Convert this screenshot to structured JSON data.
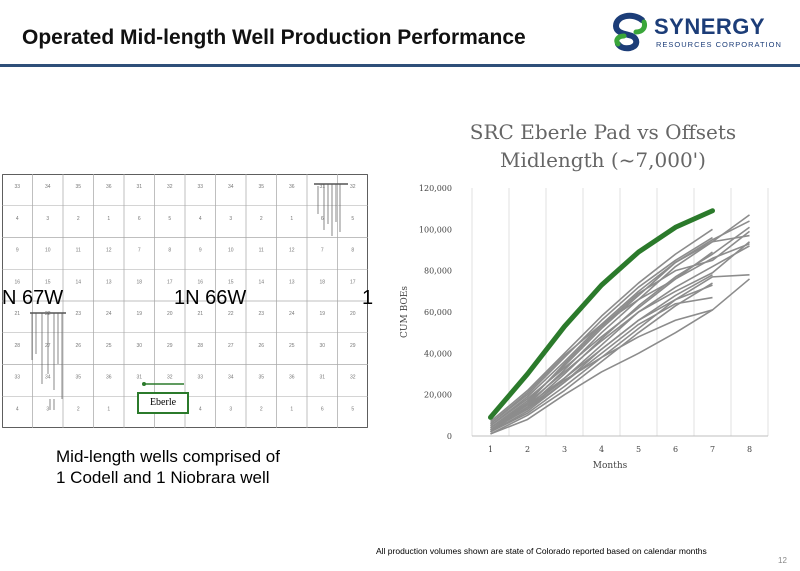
{
  "header": {
    "title": "Operated Mid-length Well Production Performance",
    "logo_name": "SYNERGY",
    "logo_subtitle": "RESOURCES CORPORATION",
    "logo_icon": "synergy-s-logo"
  },
  "map": {
    "township_left": "N 67W",
    "township_center": "1N 66W",
    "township_right": "1",
    "pad_label": "Eberle",
    "section_rows": [
      [
        "33",
        "34",
        "35",
        "36",
        "31",
        "32",
        "33",
        "34",
        "35",
        "36",
        "31",
        "32"
      ],
      [
        "4",
        "3",
        "2",
        "1",
        "6",
        "5",
        "4",
        "3",
        "2",
        "1",
        "6",
        "5"
      ],
      [
        "9",
        "10",
        "11",
        "12",
        "7",
        "8",
        "9",
        "10",
        "11",
        "12",
        "7",
        "8"
      ],
      [
        "16",
        "15",
        "14",
        "13",
        "18",
        "17",
        "16",
        "15",
        "14",
        "13",
        "18",
        "17"
      ],
      [
        "21",
        "22",
        "23",
        "24",
        "19",
        "20",
        "21",
        "22",
        "23",
        "24",
        "19",
        "20"
      ],
      [
        "28",
        "27",
        "26",
        "25",
        "30",
        "29",
        "28",
        "27",
        "26",
        "25",
        "30",
        "29"
      ],
      [
        "33",
        "34",
        "35",
        "36",
        "31",
        "32",
        "33",
        "34",
        "35",
        "36",
        "31",
        "32"
      ],
      [
        "4",
        "3",
        "2",
        "1",
        "6",
        "5",
        "4",
        "3",
        "2",
        "1",
        "6",
        "5"
      ]
    ]
  },
  "caption": {
    "line1": "Mid-length wells comprised of",
    "line2": "1 Codell and 1 Niobrara well"
  },
  "chart_title": {
    "line1": "SRC Eberle Pad vs Offsets",
    "line2": "Midlength (~7,000')"
  },
  "chart_data": {
    "type": "line",
    "title": "SRC Eberle Pad vs Offsets Midlength (~7,000')",
    "xlabel": "Months",
    "ylabel": "CUM BOEs",
    "x": [
      1,
      2,
      3,
      4,
      5,
      6,
      7,
      8
    ],
    "ylim": [
      0,
      120000
    ],
    "yticks": [
      0,
      20000,
      40000,
      60000,
      80000,
      100000,
      120000
    ],
    "ytick_labels": [
      "0",
      "20,000",
      "40,000",
      "60,000",
      "80,000",
      "100,000",
      "120,000"
    ],
    "grid": "vertical",
    "highlight_color": "#2b7a2b",
    "offset_color": "#8c8c8c",
    "highlight": {
      "values": [
        9000,
        30000,
        53000,
        73000,
        89000,
        101000,
        109000
      ]
    },
    "offsets": [
      {
        "values": [
          3000,
          15000,
          32000,
          50000,
          66000,
          82000,
          94000,
          107000
        ]
      },
      {
        "values": [
          4000,
          17000,
          34000,
          52000,
          68000,
          84000,
          95000,
          104000
        ]
      },
      {
        "values": [
          2000,
          14000,
          30000,
          47000,
          63000,
          77000,
          88000,
          101000
        ]
      },
      {
        "values": [
          5000,
          19000,
          36000,
          54000,
          70000,
          84000,
          94000,
          97000
        ]
      },
      {
        "values": [
          3000,
          13000,
          28000,
          44000,
          60000,
          72000,
          82000,
          92000
        ]
      },
      {
        "values": [
          6000,
          20000,
          38000,
          56000,
          72000,
          85000,
          96000
        ]
      },
      {
        "values": [
          4000,
          16000,
          31000,
          46000,
          60000,
          70000,
          79000,
          94000
        ]
      },
      {
        "values": [
          2000,
          12000,
          26000,
          42000,
          56000,
          68000,
          78000
        ]
      },
      {
        "values": [
          1000,
          10000,
          22000,
          36000,
          50000,
          63000,
          74000
        ]
      },
      {
        "values": [
          3000,
          14000,
          27000,
          38000,
          48000,
          56000,
          61000
        ]
      },
      {
        "values": [
          5000,
          18000,
          33000,
          48000,
          62000,
          76000,
          89000
        ]
      },
      {
        "values": [
          7000,
          22000,
          40000,
          58000,
          74000,
          88000,
          100000
        ]
      },
      {
        "values": [
          2000,
          11000,
          24000,
          38000,
          52000,
          66000,
          77000,
          78000
        ]
      },
      {
        "values": [
          1000,
          8000,
          20000,
          31000,
          40000,
          50000,
          61000,
          76000
        ]
      },
      {
        "values": [
          4000,
          15000,
          28000,
          42000,
          56000,
          66000,
          73000
        ]
      },
      {
        "values": [
          6000,
          21000,
          39000,
          54000,
          66000,
          76000,
          86000,
          93000
        ]
      },
      {
        "values": [
          3000,
          13000,
          26000,
          40000,
          54000,
          64000,
          67000
        ]
      },
      {
        "values": [
          2000,
          16000,
          35000,
          53000,
          69000,
          80000,
          85000,
          99000
        ]
      }
    ]
  },
  "footnote": "All production volumes shown are state of Colorado reported based on calendar months",
  "page_number": "12"
}
